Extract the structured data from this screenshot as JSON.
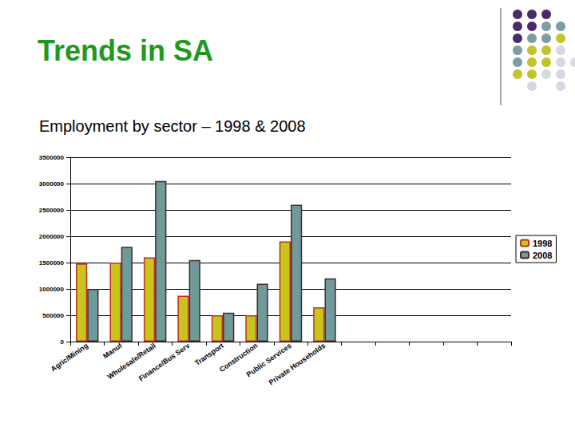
{
  "chart_data": {
    "type": "bar",
    "title": "Trends in SA",
    "subtitle": "Employment by sector – 1998 & 2008",
    "categories": [
      "Agric/Mining",
      "Manuf",
      "Wholesale/Retail",
      "Finance/Bus Serv",
      "Transport",
      "Construction",
      "Public Services",
      "Private Households",
      null,
      null,
      null,
      null,
      null
    ],
    "series": [
      {
        "name": "1998",
        "color": "#c8c41e",
        "values": [
          1480000,
          1500000,
          1600000,
          870000,
          500000,
          500000,
          1900000,
          650000,
          null,
          null,
          null,
          null,
          null
        ]
      },
      {
        "name": "2008",
        "color": "#6f9a9a",
        "values": [
          1000000,
          1800000,
          3050000,
          1550000,
          550000,
          1100000,
          2600000,
          1200000,
          null,
          null,
          null,
          null,
          null
        ]
      }
    ],
    "ylim": [
      0,
      3500000
    ],
    "yticks": [
      0,
      500000,
      1000000,
      1500000,
      2000000,
      2500000,
      3000000,
      3500000
    ],
    "grid": true,
    "legend": "right"
  }
}
